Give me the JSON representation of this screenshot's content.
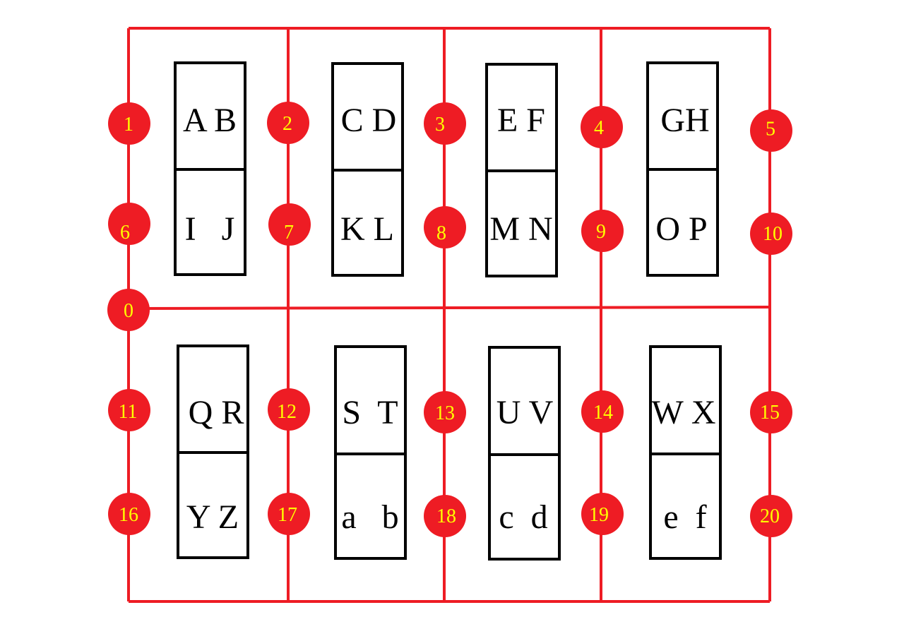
{
  "colors": {
    "wire": "#ee1c24",
    "node_fill": "#ee1c24",
    "node_label": "#ffff00",
    "box_stroke": "#000000",
    "text": "#000000",
    "background": "#ffffff"
  },
  "boxes": [
    {
      "top": "A B",
      "bottom": "I   J"
    },
    {
      "top": "C D",
      "bottom": "K L"
    },
    {
      "top": "E F",
      "bottom": "M N"
    },
    {
      "top": "GH",
      "bottom": "O P"
    },
    {
      "top": "Q R",
      "bottom": "Y Z"
    },
    {
      "top": "S  T",
      "bottom": "a   b"
    },
    {
      "top": "U V",
      "bottom": "c  d"
    },
    {
      "top": "W X",
      "bottom": "e  f"
    }
  ],
  "nodes": [
    "0",
    "1",
    "2",
    "3",
    "4",
    "5",
    "6",
    "7",
    "8",
    "9",
    "10",
    "11",
    "12",
    "13",
    "14",
    "15",
    "16",
    "17",
    "18",
    "19",
    "20"
  ]
}
